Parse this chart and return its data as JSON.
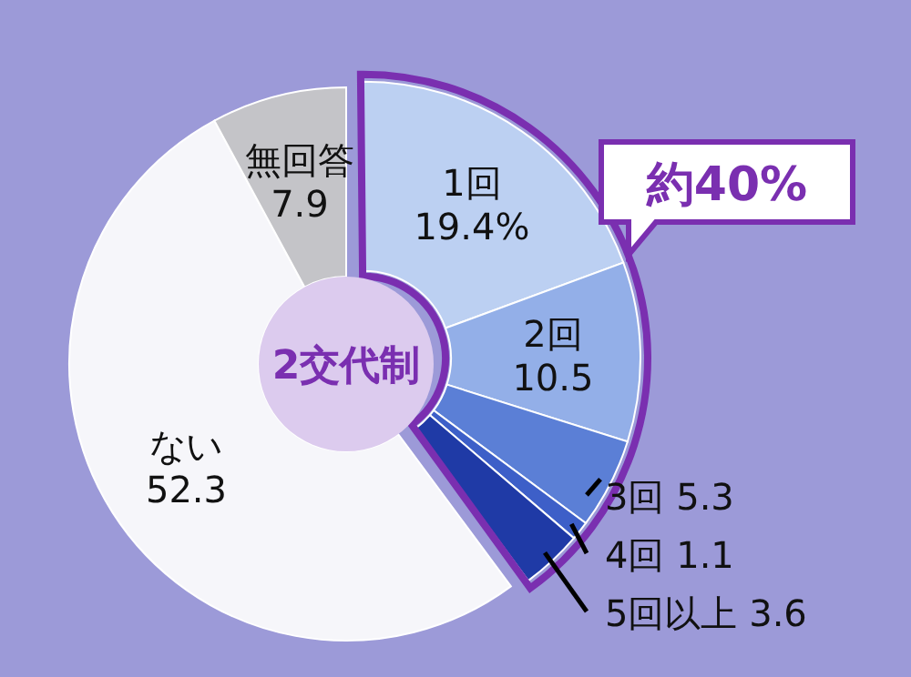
{
  "chart_data": {
    "type": "donut",
    "title": "2交代制",
    "categories": [
      "1回",
      "2回",
      "3回",
      "4回",
      "5回以上",
      "ない",
      "無回答"
    ],
    "values": [
      19.4,
      10.5,
      5.3,
      1.1,
      3.6,
      52.3,
      7.9
    ],
    "value_labels": [
      "19.4%",
      "10.5",
      "5.3",
      "1.1",
      "3.6",
      "52.3",
      "7.9"
    ],
    "colors": [
      "#bcd0f2",
      "#93afe8",
      "#5b7fd6",
      "#3d5fc8",
      "#1f3aa6",
      "#f6f6fa",
      "#c4c4c8"
    ],
    "annotations": [
      "約40%"
    ]
  }
}
